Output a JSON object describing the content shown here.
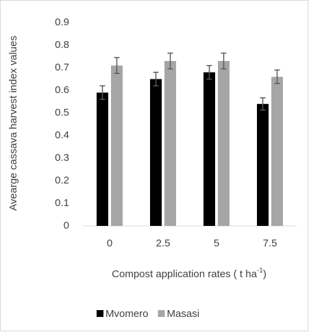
{
  "chart_data": {
    "type": "bar",
    "ylabel": "Avearge cassava harvest index values",
    "xlabel": [
      "Compost application rates ( t ha",
      "-1",
      ")"
    ],
    "categories": [
      "0",
      "2.5",
      "5",
      "7.5"
    ],
    "series": [
      {
        "name": "Mvomero",
        "color": "#000000",
        "values": [
          0.59,
          0.65,
          0.68,
          0.54
        ],
        "errors": [
          0.03,
          0.03,
          0.03,
          0.027
        ]
      },
      {
        "name": "Masasi",
        "color": "#a6a6a6",
        "values": [
          0.71,
          0.73,
          0.73,
          0.66
        ],
        "errors": [
          0.035,
          0.035,
          0.035,
          0.03
        ]
      }
    ],
    "error_color": "#595959",
    "ylim": [
      0,
      0.9
    ],
    "yticks": [
      0,
      0.1,
      0.2,
      0.3,
      0.4,
      0.5,
      0.6,
      0.7,
      0.8,
      0.9
    ],
    "grid": false,
    "legend": "bottom"
  }
}
